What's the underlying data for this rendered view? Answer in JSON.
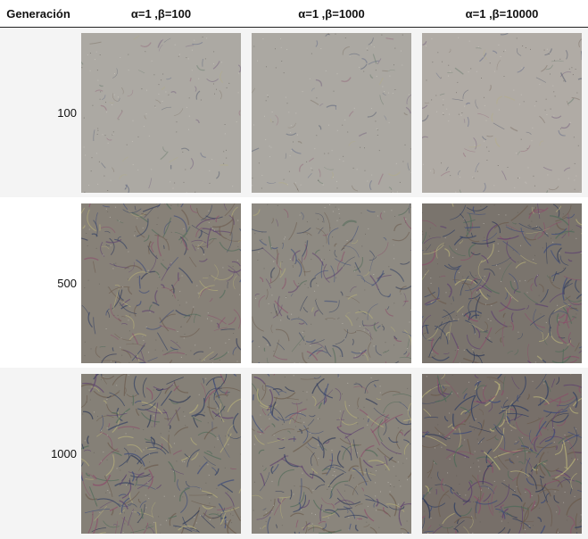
{
  "header": {
    "generation_label": "Generación",
    "columns": [
      "α=1 ,β=100",
      "α=1 ,β=1000",
      "α=1 ,β=10000"
    ]
  },
  "rows": [
    {
      "generation": "100",
      "tiles": [
        {
          "tone": "#aca9a3",
          "texture": 0.15,
          "alt": "noise texture"
        },
        {
          "tone": "#aba8a2",
          "texture": 0.15,
          "alt": "noise texture"
        },
        {
          "tone": "#b0aba5",
          "texture": 0.2,
          "alt": "noise texture"
        }
      ]
    },
    {
      "generation": "500",
      "tiles": [
        {
          "tone": "#878178",
          "texture": 0.7,
          "alt": "swirl texture"
        },
        {
          "tone": "#8e8a82",
          "texture": 0.6,
          "alt": "swirl texture"
        },
        {
          "tone": "#7a746d",
          "texture": 0.85,
          "alt": "swirl texture"
        }
      ]
    },
    {
      "generation": "1000",
      "tiles": [
        {
          "tone": "#858077",
          "texture": 0.85,
          "alt": "swirl texture"
        },
        {
          "tone": "#8a857c",
          "texture": 0.8,
          "alt": "swirl texture"
        },
        {
          "tone": "#776f69",
          "texture": 1.0,
          "alt": "swirl texture"
        }
      ]
    }
  ]
}
